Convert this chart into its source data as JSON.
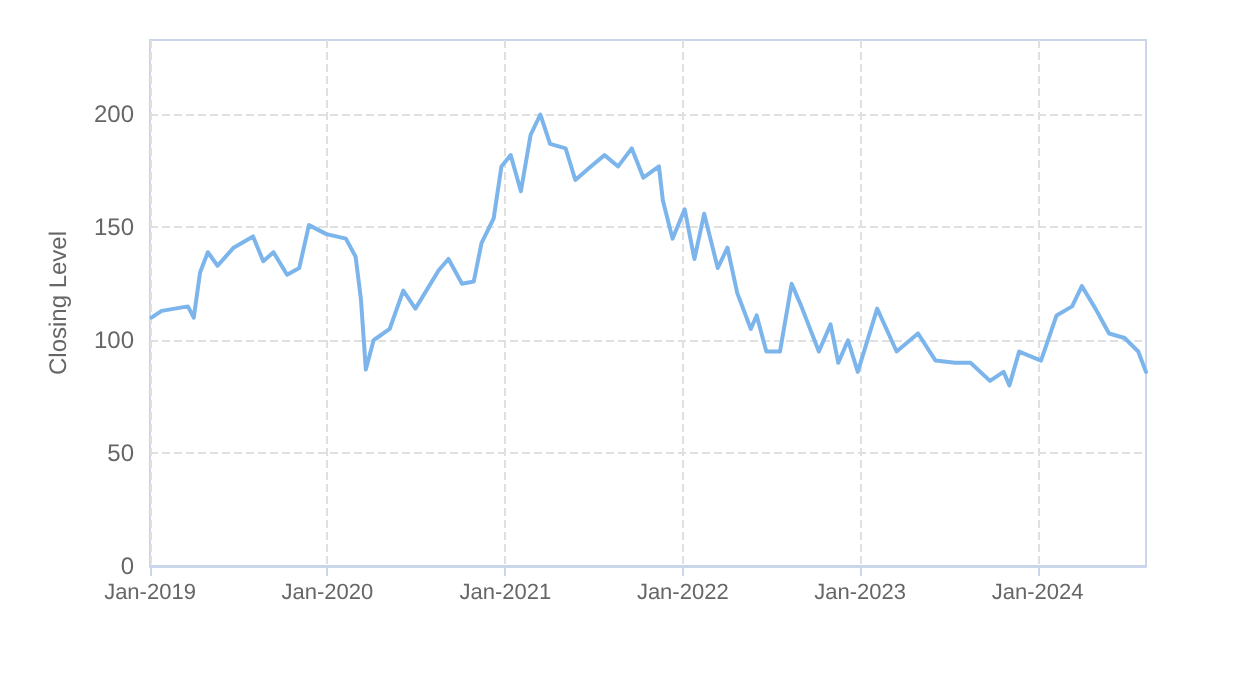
{
  "chart_data": {
    "type": "line",
    "ylabel": "Closing Level",
    "xlim": [
      "2019-01-01",
      "2024-08-11"
    ],
    "ylim": [
      0,
      233
    ],
    "yticks": [
      0,
      50,
      100,
      150,
      200
    ],
    "xticks": [
      {
        "value": "2019-01-01",
        "label": "Jan-2019"
      },
      {
        "value": "2020-01-01",
        "label": "Jan-2020"
      },
      {
        "value": "2021-01-01",
        "label": "Jan-2021"
      },
      {
        "value": "2022-01-01",
        "label": "Jan-2022"
      },
      {
        "value": "2023-01-01",
        "label": "Jan-2023"
      },
      {
        "value": "2024-01-01",
        "label": "Jan-2024"
      }
    ],
    "grid": true,
    "marker": "none",
    "line_style": "solid",
    "x": [
      "2019-01-04",
      "2019-01-25",
      "2019-03-20",
      "2019-04-01",
      "2019-04-14",
      "2019-04-30",
      "2019-05-20",
      "2019-06-22",
      "2019-08-01",
      "2019-08-22",
      "2019-09-12",
      "2019-10-10",
      "2019-11-04",
      "2019-11-24",
      "2019-12-30",
      "2020-02-08",
      "2020-02-28",
      "2020-03-10",
      "2020-03-20",
      "2020-04-05",
      "2020-05-08",
      "2020-06-05",
      "2020-06-30",
      "2020-08-17",
      "2020-09-06",
      "2020-10-04",
      "2020-10-28",
      "2020-11-13",
      "2020-12-08",
      "2020-12-24",
      "2021-01-12",
      "2021-02-02",
      "2021-02-22",
      "2021-03-14",
      "2021-04-03",
      "2021-05-05",
      "2021-05-25",
      "2021-06-26",
      "2021-07-24",
      "2021-08-21",
      "2021-09-18",
      "2021-10-12",
      "2021-11-13",
      "2021-11-21",
      "2021-12-11",
      "2022-01-05",
      "2022-01-25",
      "2022-02-14",
      "2022-03-14",
      "2022-04-03",
      "2022-04-23",
      "2022-05-21",
      "2022-06-02",
      "2022-06-22",
      "2022-07-20",
      "2022-08-13",
      "2022-09-02",
      "2022-10-08",
      "2022-11-01",
      "2022-11-17",
      "2022-12-07",
      "2022-12-27",
      "2023-02-05",
      "2023-03-17",
      "2023-04-30",
      "2023-06-05",
      "2023-07-15",
      "2023-08-16",
      "2023-09-25",
      "2023-10-23",
      "2023-11-04",
      "2023-11-24",
      "2024-01-08",
      "2024-02-09",
      "2024-03-12",
      "2024-04-01",
      "2024-04-29",
      "2024-05-27",
      "2024-06-28",
      "2024-07-26",
      "2024-08-11"
    ],
    "series": [
      {
        "color": "#7cb5ec",
        "values": [
          110,
          113,
          115,
          110,
          130,
          139,
          133,
          141,
          146,
          135,
          139,
          129,
          132,
          151,
          147,
          145,
          137,
          118,
          87,
          100,
          105,
          122,
          114,
          131,
          136,
          125,
          126,
          143,
          154,
          177,
          182,
          166,
          191,
          200,
          187,
          185,
          171,
          177,
          182,
          177,
          185,
          172,
          177,
          162,
          145,
          158,
          136,
          156,
          132,
          141,
          121,
          105,
          111,
          95,
          95,
          125,
          115,
          95,
          107,
          90,
          100,
          86,
          114,
          95,
          103,
          91,
          90,
          90,
          82,
          86,
          80,
          95,
          91,
          111,
          115,
          124,
          114,
          103,
          101,
          95,
          86
        ]
      }
    ]
  }
}
